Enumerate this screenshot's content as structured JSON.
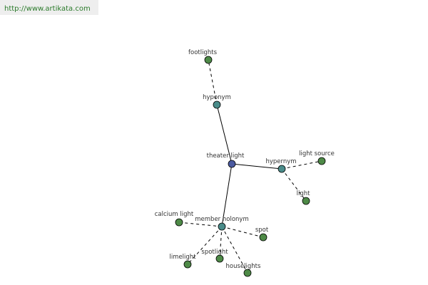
{
  "header": {
    "url": "http://www.artikata.com"
  },
  "nodes": [
    {
      "label": "theater light"
    },
    {
      "label": "hyponym"
    },
    {
      "label": "footlights"
    },
    {
      "label": "hypernym"
    },
    {
      "label": "light source"
    },
    {
      "label": "light"
    },
    {
      "label": "member holonym"
    },
    {
      "label": "calcium light"
    },
    {
      "label": "spot"
    },
    {
      "label": "spotlight"
    },
    {
      "label": "limelight"
    },
    {
      "label": "houselights"
    }
  ]
}
